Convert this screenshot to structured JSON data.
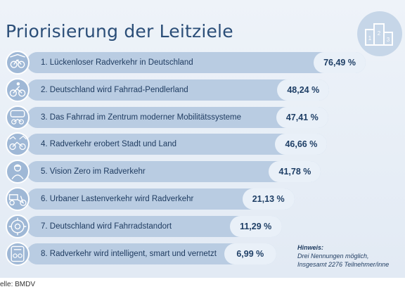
{
  "chart_data": {
    "type": "bar",
    "title": "Priorisierung der Leitziele",
    "categories": [
      "1. Lückenloser Radverkehr in Deutschland",
      "2. Deutschland wird Fahrrad-Pendlerland",
      "3. Das Fahrrad im Zentrum moderner Mobilitätssysteme",
      "4. Radverkehr erobert Stadt und Land",
      "5. Vision Zero im Radverkehr",
      "6. Urbaner Lastenverkehr wird Radverkehr",
      "7. Deutschland wird Fahrradstandort",
      "8. Radverkehr wird intelligent, smart und vernetzt"
    ],
    "values": [
      76.49,
      48.24,
      47.41,
      46.66,
      41.78,
      21.13,
      11.29,
      6.99
    ],
    "value_labels": [
      "76,49 %",
      "48,24 %",
      "47,41 %",
      "46,66 %",
      "41,78 %",
      "21,13 %",
      "11,29 %",
      "6,99 %"
    ],
    "xlim": [
      0,
      76.49
    ],
    "xlabel": "",
    "ylabel": ""
  },
  "icons": [
    "cyclist-road-icon",
    "commuter-cyclist-icon",
    "train-bicycle-icon",
    "city-country-bike-icon",
    "helmeted-cyclist-icon",
    "cargo-bike-icon",
    "bicycle-gear-icon",
    "smart-bike-device-icon"
  ],
  "header_icon": "podium-icon",
  "note": {
    "heading": "Hinweis:",
    "line1": "Drei Nennungen möglich,",
    "line2": "Insgesamt 2276 Teilnehmer/inne"
  },
  "source": "elle: BMDV",
  "colors": {
    "title": "#2b4e78",
    "bar": "#b9cce2",
    "pill": "#e9f0f8",
    "icon": "#9fb8d6",
    "background": "#e6edf6"
  }
}
